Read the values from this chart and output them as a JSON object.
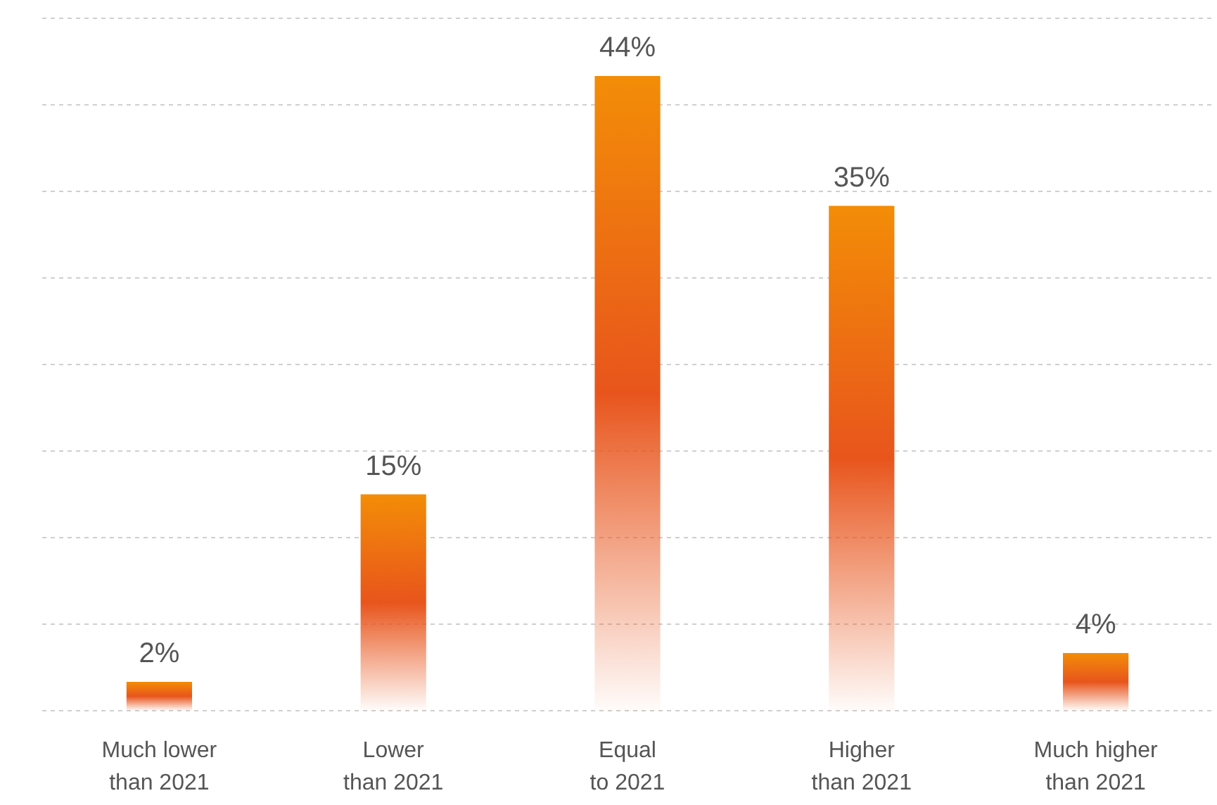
{
  "chart_data": {
    "type": "bar",
    "categories": [
      "Much lower than 2021",
      "Lower than 2021",
      "Equal to 2021",
      "Higher than 2021",
      "Much higher than 2021"
    ],
    "values": [
      2,
      15,
      44,
      35,
      4
    ],
    "value_labels": [
      "2%",
      "15%",
      "44%",
      "35%",
      "4%"
    ],
    "color": "#e8551c",
    "ylim": [
      0,
      48
    ],
    "yticks": [
      {
        "value": 0,
        "label": null
      },
      {
        "value": 6,
        "label": null
      },
      {
        "value": 12,
        "label": null
      },
      {
        "value": 18,
        "label": null
      },
      {
        "value": 24,
        "label": null
      },
      {
        "value": 30,
        "label": null
      },
      {
        "value": 36,
        "label": null
      },
      {
        "value": 42,
        "label": null
      },
      {
        "value": 48,
        "label": null
      }
    ],
    "grid": "y",
    "tick_labels": "x"
  }
}
